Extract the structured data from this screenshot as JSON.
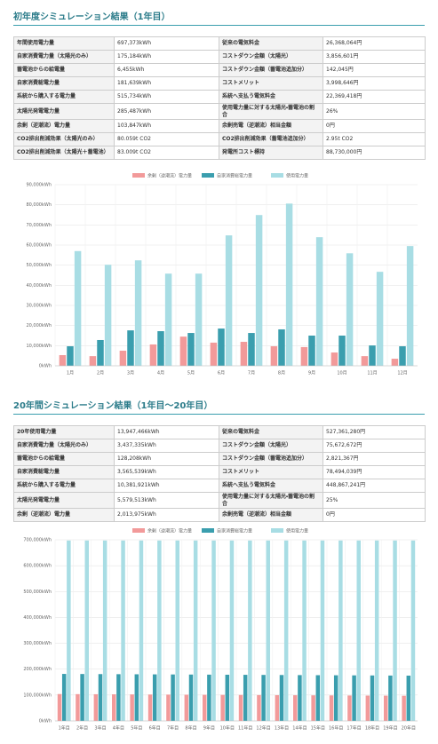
{
  "sections": [
    {
      "title": "初年度シミュレーション結果（1年目）",
      "rows": [
        [
          "年間使用電力量",
          "697,373kWh",
          "従来の電気料金",
          "26,368,064円"
        ],
        [
          "自家消費電力量（太陽光のみ）",
          "175,184kWh",
          "コストダウン金額（太陽光）",
          "3,856,601円"
        ],
        [
          "蓄電池からの給電量",
          "6,455kWh",
          "コストダウン金額（蓄電池追加分）",
          "142,045円"
        ],
        [
          "自家消費総電力量",
          "181,639kWh",
          "コストメリット",
          "3,998,646円"
        ],
        [
          "系統から購入する電力量",
          "515,734kWh",
          "系統へ支払う電気料金",
          "22,369,418円"
        ],
        [
          "太陽光発電電力量",
          "285,487kWh",
          "使用電力量に対する太陽光・蓄電池の割合",
          "26%"
        ],
        [
          "余剰（逆潮流）電力量",
          "103,847kWh",
          "余剰売電（逆潮流）相当金額",
          "0円"
        ],
        [
          "CO2排出削減効果（太陽光のみ）",
          "80.059t CO2",
          "CO2排出削減効果（蓄電池追加分）",
          "2.95t CO2"
        ],
        [
          "CO2排出削減効果（太陽光＋蓄電池）",
          "83.009t CO2",
          "発電所コスト標持",
          "88,730,000円"
        ]
      ]
    },
    {
      "title": "20年間シミュレーション結果（1年目〜20年目）",
      "rows": [
        [
          "20年使用電力量",
          "13,947,466kWh",
          "従来の電気料金",
          "527,361,280円"
        ],
        [
          "自家消費電力量（太陽光のみ）",
          "3,437,335kWh",
          "コストダウン金額（太陽光）",
          "75,672,672円"
        ],
        [
          "蓄電池からの給電量",
          "128,208kWh",
          "コストダウン金額（蓄電池追加分）",
          "2,821,367円"
        ],
        [
          "自家消費総電力量",
          "3,565,539kWh",
          "コストメリット",
          "78,494,039円"
        ],
        [
          "系統から購入する電力量",
          "10,381,921kWh",
          "系統へ支払う電気料金",
          "448,867,241円"
        ],
        [
          "太陽光発電電力量",
          "5,579,513kWh",
          "使用電力量に対する太陽光・蓄電池の割合",
          "25%"
        ],
        [
          "余剰（逆潮流）電力量",
          "2,013,975kWh",
          "余剰売電（逆潮流）相当金額",
          "0円"
        ]
      ]
    }
  ],
  "chart_data": [
    {
      "type": "bar",
      "legend": "top",
      "grid": true,
      "categories": [
        "1月",
        "2月",
        "3月",
        "4月",
        "5月",
        "6月",
        "7月",
        "8月",
        "9月",
        "10月",
        "11月",
        "12月"
      ],
      "series": [
        {
          "name": "余剰（逆潮流）電力量",
          "color": "#f29a9a",
          "values": [
            5300,
            4800,
            7500,
            10600,
            14500,
            11500,
            11900,
            9700,
            9300,
            6600,
            4800,
            3500
          ]
        },
        {
          "name": "自家消費総電力量",
          "color": "#3a9eae",
          "values": [
            9700,
            12800,
            17600,
            17200,
            16300,
            18500,
            16300,
            18100,
            15000,
            15000,
            10100,
            9700
          ]
        },
        {
          "name": "使用電力量",
          "color": "#a8dde4",
          "values": [
            57000,
            50200,
            52400,
            45800,
            45800,
            64800,
            74900,
            80600,
            63900,
            55900,
            46700,
            59500
          ]
        }
      ],
      "ylim": [
        0,
        90000
      ],
      "yticks": [
        {
          "value": 0,
          "label": "0kWh"
        },
        {
          "value": 10000,
          "label": "10,000kWh"
        },
        {
          "value": 20000,
          "label": "20,000kWh"
        },
        {
          "value": 30000,
          "label": "30,000kWh"
        },
        {
          "value": 40000,
          "label": "40,000kWh"
        },
        {
          "value": 50000,
          "label": "50,000kWh"
        },
        {
          "value": 60000,
          "label": "60,000kWh"
        },
        {
          "value": 70000,
          "label": "70,000kWh"
        },
        {
          "value": 80000,
          "label": "80,000kWh"
        },
        {
          "value": 90000,
          "label": "90,000kWh"
        }
      ]
    },
    {
      "type": "bar",
      "legend": "top",
      "grid": true,
      "categories": [
        "1年目",
        "2年目",
        "3年目",
        "4年目",
        "5年目",
        "6年目",
        "7年目",
        "8年目",
        "9年目",
        "10年目",
        "11年目",
        "12年目",
        "13年目",
        "14年目",
        "15年目",
        "16年目",
        "17年目",
        "18年目",
        "19年目",
        "20年目"
      ],
      "series": [
        {
          "name": "余剰（逆潮流）電力量",
          "color": "#f29a9a",
          "values": [
            103847,
            103500,
            103150,
            102800,
            102450,
            102100,
            101750,
            101400,
            101050,
            100700,
            100350,
            100000,
            99650,
            99300,
            98950,
            98600,
            98250,
            97900,
            97550,
            97200
          ]
        },
        {
          "name": "自家消費総電力量",
          "color": "#3a9eae",
          "values": [
            181639,
            181300,
            180950,
            180600,
            180250,
            179900,
            179550,
            179200,
            178850,
            178500,
            178150,
            177800,
            177450,
            177100,
            176750,
            176400,
            176050,
            175700,
            175350,
            175000
          ]
        },
        {
          "name": "使用電力量",
          "color": "#a8dde4",
          "values": [
            697373,
            697373,
            697373,
            697373,
            697373,
            697373,
            697373,
            697373,
            697373,
            697373,
            697373,
            697373,
            697373,
            697373,
            697373,
            697373,
            697373,
            697373,
            697373,
            697373
          ]
        }
      ],
      "ylim": [
        0,
        700000
      ],
      "yticks": [
        {
          "value": 0,
          "label": "0kWh"
        },
        {
          "value": 100000,
          "label": "100,000kWh"
        },
        {
          "value": 200000,
          "label": "200,000kWh"
        },
        {
          "value": 300000,
          "label": "300,000kWh"
        },
        {
          "value": 400000,
          "label": "400,000kWh"
        },
        {
          "value": 500000,
          "label": "500,000kWh"
        },
        {
          "value": 600000,
          "label": "600,000kWh"
        },
        {
          "value": 700000,
          "label": "700,000kWh"
        }
      ]
    }
  ]
}
